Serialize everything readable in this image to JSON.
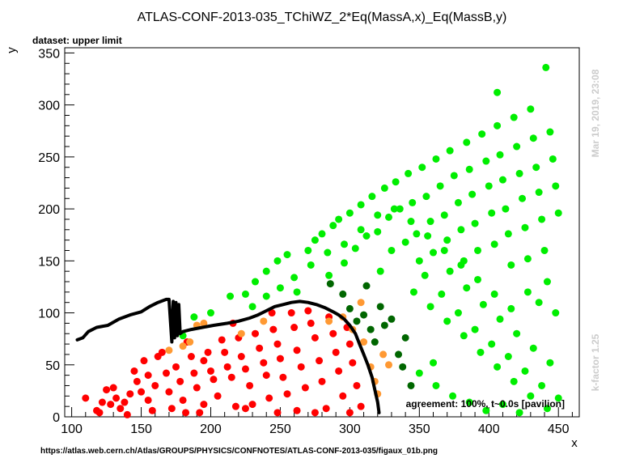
{
  "chart_data": {
    "type": "scatter",
    "title": "ATLAS-CONF-2013-035_TChiWZ_2*Eq(MassA,x)_Eq(MassB,y)",
    "subtitle": "dataset: upper limit",
    "xlabel": "x",
    "ylabel": "y",
    "xlim": [
      95,
      465
    ],
    "ylim": [
      0,
      355
    ],
    "x_ticks": [
      100,
      150,
      200,
      250,
      300,
      350,
      400,
      450
    ],
    "y_ticks": [
      0,
      50,
      100,
      150,
      200,
      250,
      300,
      350
    ],
    "grid": false,
    "legend": "none",
    "annotations": {
      "agreement": "agreement: 100%, t~0.0s [pavilion]",
      "timestamp": "Mar 19, 2019, 23:08",
      "kfactor": "k-factor 1.25",
      "source_url": "https://atlas.web.cern.ch/Atlas/GROUPS/PHYSICS/CONFNOTES/ATLAS-CONF-2013-035/figaux_01b.png"
    },
    "colors": {
      "excluded": "#ff0000",
      "excluded_border": "#ff9933",
      "allowed_border": "#006600",
      "allowed": "#00ee00",
      "exclusion_line": "#000000"
    },
    "series": [
      {
        "points": [
          [
            110,
            18
          ],
          [
            118,
            6
          ],
          [
            120,
            4
          ],
          [
            122,
            14
          ],
          [
            125,
            26
          ],
          [
            128,
            12
          ],
          [
            130,
            28
          ],
          [
            132,
            18
          ],
          [
            135,
            8
          ],
          [
            138,
            14
          ],
          [
            140,
            2
          ],
          [
            145,
            44
          ],
          [
            147,
            34
          ],
          [
            150,
            24
          ],
          [
            152,
            54
          ],
          [
            155,
            40
          ],
          [
            158,
            6
          ],
          [
            160,
            30
          ],
          [
            162,
            58
          ],
          [
            165,
            62
          ],
          [
            168,
            42
          ],
          [
            170,
            24
          ],
          [
            172,
            8
          ],
          [
            175,
            48
          ],
          [
            178,
            34
          ],
          [
            180,
            16
          ],
          [
            183,
            72
          ],
          [
            186,
            58
          ],
          [
            188,
            42
          ],
          [
            190,
            28
          ],
          [
            192,
            4
          ],
          [
            195,
            54
          ],
          [
            198,
            62
          ],
          [
            200,
            44
          ],
          [
            202,
            36
          ],
          [
            205,
            20
          ],
          [
            208,
            74
          ],
          [
            210,
            62
          ],
          [
            212,
            48
          ],
          [
            215,
            38
          ],
          [
            218,
            10
          ],
          [
            220,
            76
          ],
          [
            222,
            58
          ],
          [
            225,
            46
          ],
          [
            228,
            30
          ],
          [
            230,
            12
          ],
          [
            232,
            80
          ],
          [
            235,
            66
          ],
          [
            238,
            52
          ],
          [
            240,
            40
          ],
          [
            242,
            18
          ],
          [
            245,
            84
          ],
          [
            248,
            70
          ],
          [
            250,
            56
          ],
          [
            252,
            38
          ],
          [
            255,
            22
          ],
          [
            258,
            100
          ],
          [
            260,
            86
          ],
          [
            262,
            64
          ],
          [
            265,
            48
          ],
          [
            268,
            28
          ],
          [
            270,
            102
          ],
          [
            272,
            90
          ],
          [
            275,
            76
          ],
          [
            278,
            54
          ],
          [
            280,
            34
          ],
          [
            283,
            8
          ],
          [
            285,
            96
          ],
          [
            288,
            80
          ],
          [
            290,
            62
          ],
          [
            292,
            44
          ],
          [
            295,
            20
          ],
          [
            298,
            86
          ],
          [
            300,
            70
          ],
          [
            302,
            52
          ],
          [
            305,
            30
          ],
          [
            308,
            10
          ],
          [
            248,
            4
          ],
          [
            262,
            6
          ],
          [
            275,
            4
          ],
          [
            300,
            4
          ],
          [
            216,
            90
          ],
          [
            182,
            4
          ],
          [
            142,
            22
          ],
          [
            155,
            16
          ],
          [
            195,
            12
          ],
          [
            225,
            8
          ],
          [
            244,
            100
          ]
        ]
      },
      {
        "points": [
          [
            170,
            64
          ],
          [
            180,
            68
          ],
          [
            185,
            72
          ],
          [
            190,
            88
          ],
          [
            195,
            90
          ],
          [
            222,
            80
          ],
          [
            238,
            92
          ],
          [
            285,
            92
          ],
          [
            295,
            96
          ],
          [
            302,
            84
          ],
          [
            308,
            110
          ],
          [
            310,
            72
          ],
          [
            315,
            48
          ],
          [
            318,
            34
          ],
          [
            320,
            22
          ],
          [
            324,
            60
          ],
          [
            328,
            50
          ]
        ]
      },
      {
        "points": [
          [
            295,
            118
          ],
          [
            300,
            104
          ],
          [
            305,
            92
          ],
          [
            310,
            98
          ],
          [
            315,
            84
          ],
          [
            318,
            72
          ],
          [
            322,
            106
          ],
          [
            325,
            88
          ],
          [
            330,
            94
          ],
          [
            335,
            60
          ],
          [
            338,
            48
          ],
          [
            340,
            76
          ],
          [
            312,
            126
          ],
          [
            286,
            128
          ],
          [
            344,
            30
          ]
        ]
      },
      {
        "points": [
          [
            180,
            78
          ],
          [
            188,
            96
          ],
          [
            200,
            100
          ],
          [
            214,
            116
          ],
          [
            225,
            118
          ],
          [
            232,
            130
          ],
          [
            240,
            140
          ],
          [
            248,
            150
          ],
          [
            255,
            156
          ],
          [
            262,
            120
          ],
          [
            270,
            160
          ],
          [
            275,
            170
          ],
          [
            280,
            176
          ],
          [
            285,
            136
          ],
          [
            288,
            184
          ],
          [
            292,
            190
          ],
          [
            296,
            148
          ],
          [
            300,
            196
          ],
          [
            304,
            162
          ],
          [
            308,
            204
          ],
          [
            312,
            174
          ],
          [
            316,
            212
          ],
          [
            320,
            178
          ],
          [
            322,
            140
          ],
          [
            325,
            220
          ],
          [
            328,
            192
          ],
          [
            330,
            160
          ],
          [
            333,
            226
          ],
          [
            336,
            200
          ],
          [
            340,
            168
          ],
          [
            342,
            234
          ],
          [
            345,
            206
          ],
          [
            348,
            176
          ],
          [
            350,
            150
          ],
          [
            352,
            240
          ],
          [
            355,
            212
          ],
          [
            358,
            188
          ],
          [
            360,
            158
          ],
          [
            362,
            248
          ],
          [
            365,
            222
          ],
          [
            368,
            194
          ],
          [
            370,
            170
          ],
          [
            372,
            256
          ],
          [
            375,
            232
          ],
          [
            378,
            206
          ],
          [
            380,
            180
          ],
          [
            382,
            150
          ],
          [
            384,
            264
          ],
          [
            386,
            238
          ],
          [
            388,
            214
          ],
          [
            390,
            186
          ],
          [
            392,
            160
          ],
          [
            395,
            272
          ],
          [
            398,
            246
          ],
          [
            400,
            222
          ],
          [
            402,
            196
          ],
          [
            404,
            166
          ],
          [
            406,
            280
          ],
          [
            408,
            252
          ],
          [
            410,
            228
          ],
          [
            412,
            200
          ],
          [
            414,
            176
          ],
          [
            416,
            146
          ],
          [
            418,
            288
          ],
          [
            420,
            260
          ],
          [
            422,
            234
          ],
          [
            424,
            210
          ],
          [
            426,
            182
          ],
          [
            428,
            152
          ],
          [
            430,
            296
          ],
          [
            432,
            268
          ],
          [
            434,
            240
          ],
          [
            436,
            216
          ],
          [
            438,
            190
          ],
          [
            440,
            160
          ],
          [
            442,
            130
          ],
          [
            444,
            274
          ],
          [
            446,
            248
          ],
          [
            448,
            222
          ],
          [
            450,
            196
          ],
          [
            406,
            312
          ],
          [
            441,
            336
          ],
          [
            354,
            136
          ],
          [
            366,
            118
          ],
          [
            378,
            100
          ],
          [
            390,
            84
          ],
          [
            402,
            70
          ],
          [
            414,
            58
          ],
          [
            426,
            44
          ],
          [
            438,
            30
          ],
          [
            450,
            18
          ],
          [
            346,
            120
          ],
          [
            358,
            106
          ],
          [
            370,
            92
          ],
          [
            382,
            78
          ],
          [
            394,
            62
          ],
          [
            406,
            48
          ],
          [
            418,
            34
          ],
          [
            430,
            20
          ],
          [
            442,
            8
          ],
          [
            372,
            140
          ],
          [
            384,
            124
          ],
          [
            396,
            108
          ],
          [
            408,
            94
          ],
          [
            420,
            80
          ],
          [
            432,
            66
          ],
          [
            444,
            52
          ],
          [
            360,
            52
          ],
          [
            350,
            42
          ],
          [
            362,
            30
          ],
          [
            374,
            20
          ],
          [
            386,
            14
          ],
          [
            398,
            6
          ],
          [
            410,
            12
          ],
          [
            422,
            4
          ],
          [
            436,
            110
          ],
          [
            448,
            100
          ],
          [
            428,
            120
          ],
          [
            416,
            104
          ],
          [
            404,
            118
          ],
          [
            392,
            132
          ],
          [
            380,
            146
          ],
          [
            368,
            160
          ],
          [
            356,
            174
          ],
          [
            344,
            188
          ],
          [
            332,
            200
          ],
          [
            320,
            194
          ],
          [
            308,
            180
          ],
          [
            296,
            166
          ],
          [
            284,
            158
          ],
          [
            272,
            146
          ],
          [
            260,
            134
          ],
          [
            250,
            124
          ],
          [
            240,
            116
          ],
          [
            230,
            106
          ]
        ]
      }
    ],
    "exclusion_line": [
      [
        104,
        74
      ],
      [
        108,
        76
      ],
      [
        112,
        82
      ],
      [
        118,
        86
      ],
      [
        126,
        88
      ],
      [
        134,
        94
      ],
      [
        142,
        98
      ],
      [
        150,
        101
      ],
      [
        156,
        106
      ],
      [
        162,
        110
      ],
      [
        168,
        113
      ],
      [
        170,
        113
      ],
      [
        172,
        72
      ],
      [
        173,
        111
      ],
      [
        174,
        76
      ],
      [
        175,
        110
      ],
      [
        176,
        78
      ],
      [
        177,
        108
      ],
      [
        178,
        80
      ],
      [
        180,
        82
      ],
      [
        186,
        84
      ],
      [
        194,
        86
      ],
      [
        202,
        88
      ],
      [
        212,
        90
      ],
      [
        220,
        92
      ],
      [
        228,
        95
      ],
      [
        234,
        98
      ],
      [
        240,
        102
      ],
      [
        246,
        106
      ],
      [
        252,
        108
      ],
      [
        258,
        110
      ],
      [
        264,
        111
      ],
      [
        270,
        110
      ],
      [
        276,
        108
      ],
      [
        282,
        105
      ],
      [
        288,
        101
      ],
      [
        292,
        98
      ],
      [
        296,
        94
      ],
      [
        300,
        88
      ],
      [
        304,
        80
      ],
      [
        307,
        70
      ],
      [
        310,
        60
      ],
      [
        313,
        50
      ],
      [
        316,
        38
      ],
      [
        318,
        26
      ],
      [
        320,
        14
      ],
      [
        321,
        4
      ]
    ]
  }
}
